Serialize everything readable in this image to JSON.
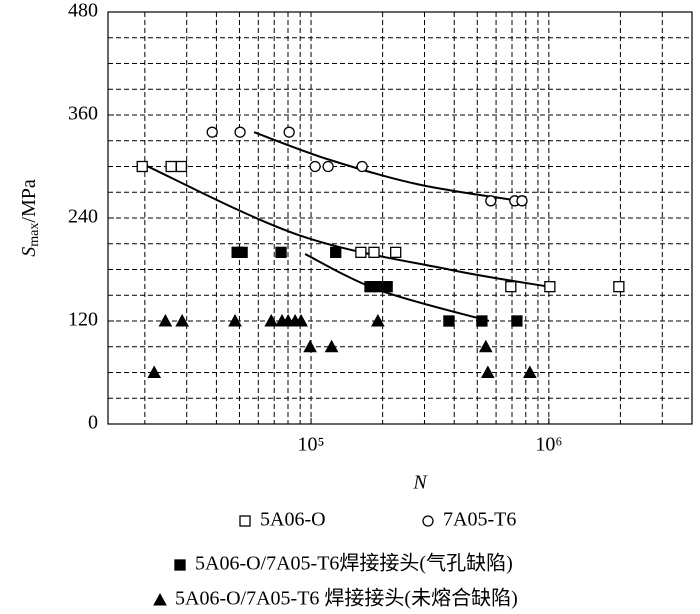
{
  "chart_data": {
    "type": "scatter",
    "x_label": "N",
    "y_label": "S",
    "y_label_sub": "max",
    "y_label_unit": "/MPa",
    "log_x": true,
    "xlim": [
      14000,
      4000000
    ],
    "xticks": [
      {
        "value": 100000,
        "label": "10⁵"
      },
      {
        "value": 1000000,
        "label": "10⁶"
      }
    ],
    "ylim": [
      0,
      480
    ],
    "yticks": [
      0,
      120,
      240,
      360,
      480
    ],
    "grid": true,
    "x_gridlines": [
      20000,
      30000,
      40000,
      50000,
      60000,
      70000,
      80000,
      90000,
      100000,
      200000,
      300000,
      400000,
      500000,
      600000,
      700000,
      800000,
      900000,
      1000000,
      2000000,
      3000000
    ],
    "y_gridlines": [
      30,
      60,
      90,
      120,
      150,
      180,
      210,
      240,
      270,
      300,
      330,
      360,
      390,
      420,
      450
    ],
    "series": [
      {
        "name": "5A06-O",
        "color": "#000000",
        "marker": "open-square",
        "x": [
          19500,
          25800,
          28500,
          162000,
          184000,
          227000,
          692000,
          1010000,
          1970000
        ],
        "values": [
          300,
          300,
          300,
          200,
          200,
          200,
          160,
          160,
          160
        ]
      },
      {
        "name": "7A05-T6",
        "color": "#000000",
        "marker": "open-circle",
        "x": [
          38400,
          50300,
          80900,
          104000,
          118000,
          164000,
          570000,
          719000,
          771000
        ],
        "values": [
          340,
          340,
          340,
          300,
          300,
          300,
          260,
          260,
          260
        ]
      },
      {
        "name": "5A06-O/7A05-T6焊接接头(气孔缺陷)",
        "color": "#000000",
        "marker": "filled-square",
        "x": [
          48900,
          51300,
          74800,
          127000,
          177000,
          193000,
          209000,
          380000,
          523000,
          734000
        ],
        "values": [
          200,
          200,
          200,
          200,
          160,
          160,
          160,
          120,
          120,
          120
        ]
      },
      {
        "name": "5A06-O/7A05-T6 焊接接头(未熔合缺陷)",
        "color": "#000000",
        "marker": "filled-triangle",
        "x": [
          24400,
          28700,
          47900,
          68000,
          75500,
          80100,
          85700,
          90800,
          191000,
          99100,
          122000,
          543000,
          21900,
          554000,
          832000
        ],
        "values": [
          120,
          120,
          120,
          120,
          120,
          120,
          120,
          120,
          120,
          90,
          90,
          90,
          60,
          60,
          60
        ]
      }
    ],
    "curves": [
      {
        "x": [
          19900,
          89000,
          380000,
          1000000
        ],
        "values": [
          302,
          220,
          180,
          160
        ]
      },
      {
        "x": [
          57600,
          119000,
          284000,
          748000
        ],
        "values": [
          340,
          308,
          279,
          260
        ]
      },
      {
        "x": [
          94400,
          193000,
          560000
        ],
        "values": [
          198,
          156,
          120
        ]
      }
    ]
  }
}
